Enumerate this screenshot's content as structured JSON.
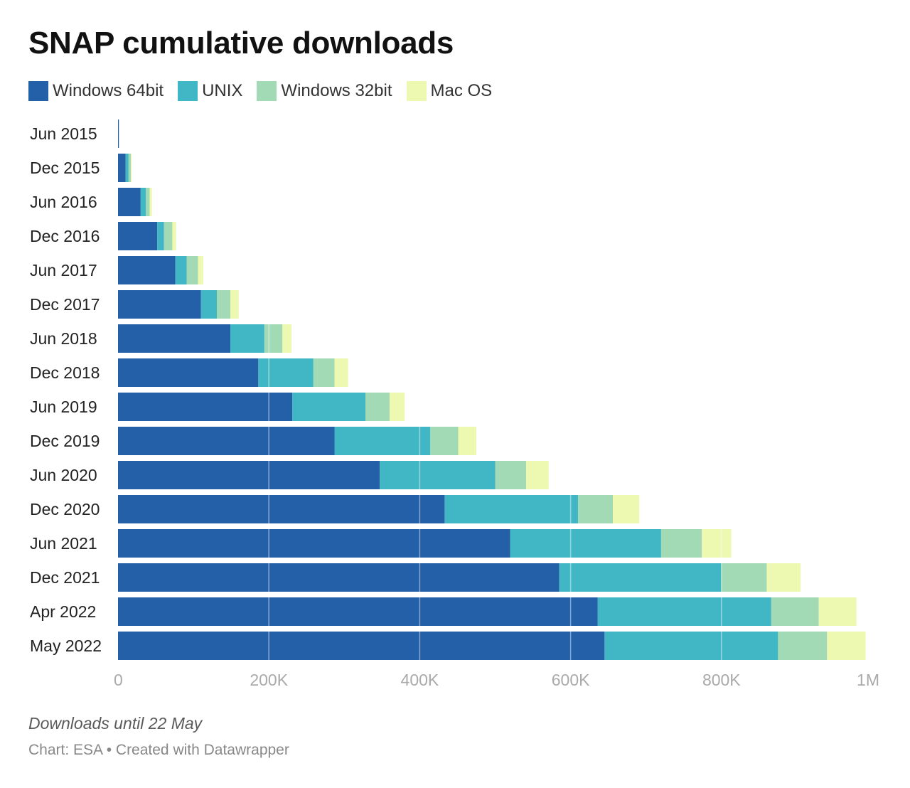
{
  "header": {
    "title": "SNAP cumulative downloads"
  },
  "footer": {
    "note": "Downloads until 22 May",
    "credit": "Chart: ESA • Created with Datawrapper"
  },
  "chart_data": {
    "type": "bar",
    "orientation": "horizontal",
    "stacked": true,
    "title": "SNAP cumulative downloads",
    "xlabel": "",
    "ylabel": "",
    "xlim": [
      0,
      1000000
    ],
    "x_ticks": [
      0,
      200000,
      400000,
      600000,
      800000,
      1000000
    ],
    "x_tick_labels": [
      "0",
      "200K",
      "400K",
      "600K",
      "800K",
      "1M"
    ],
    "grid": true,
    "legend_position": "top-left",
    "categories": [
      "Jun 2015",
      "Dec 2015",
      "Jun 2016",
      "Dec 2016",
      "Jun 2017",
      "Dec 2017",
      "Jun 2018",
      "Dec 2018",
      "Jun 2019",
      "Dec 2019",
      "Jun 2020",
      "Dec 2020",
      "Jun 2021",
      "Dec 2021",
      "Apr 2022",
      "May 2022"
    ],
    "series": [
      {
        "name": "Windows 64bit",
        "color": "#2360a8",
        "values": [
          1000,
          10000,
          30000,
          52000,
          76000,
          110000,
          149000,
          186000,
          231000,
          287000,
          347000,
          433000,
          520000,
          585000,
          636000,
          645000
        ]
      },
      {
        "name": "UNIX",
        "color": "#41b6c4",
        "values": [
          0,
          4000,
          7000,
          9000,
          15000,
          21000,
          45000,
          73000,
          97000,
          127000,
          153000,
          177000,
          200000,
          215000,
          230000,
          230000
        ]
      },
      {
        "name": "Windows 32bit",
        "color": "#a1dab4",
        "values": [
          0,
          3000,
          5000,
          11000,
          15000,
          18000,
          24000,
          28000,
          32000,
          37000,
          41000,
          46000,
          54000,
          60000,
          63000,
          65000
        ]
      },
      {
        "name": "Mac OS",
        "color": "#edf8b1",
        "values": [
          0,
          1000,
          3000,
          5000,
          7000,
          11000,
          12000,
          18000,
          20000,
          24000,
          30000,
          35000,
          39000,
          45000,
          50000,
          51000
        ]
      }
    ]
  }
}
